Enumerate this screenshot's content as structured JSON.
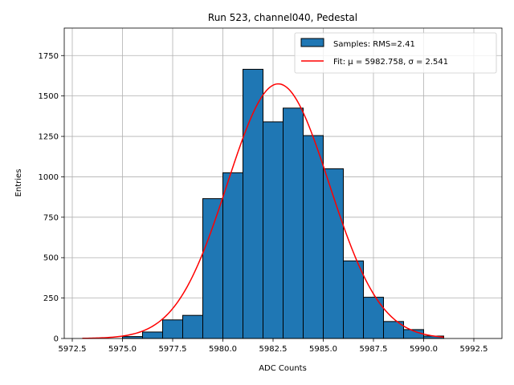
{
  "chart_data": {
    "type": "bar",
    "title": "Run 523, channel040, Pedestal",
    "xlabel": "ADC Counts",
    "ylabel": "Entries",
    "xlim": [
      5972.1,
      5993.9
    ],
    "ylim": [
      0,
      1920
    ],
    "grid": true,
    "legend_position": "top-right",
    "x_ticks": [
      5972.5,
      5975.0,
      5977.5,
      5980.0,
      5982.5,
      5985.0,
      5987.5,
      5990.0,
      5992.5
    ],
    "x_tick_labels": [
      "5972.5",
      "5975.0",
      "5977.5",
      "5980.0",
      "5982.5",
      "5985.0",
      "5987.5",
      "5990.0",
      "5992.5"
    ],
    "y_ticks": [
      0,
      250,
      500,
      750,
      1000,
      1250,
      1500,
      1750
    ],
    "y_tick_labels": [
      "0",
      "250",
      "500",
      "750",
      "1000",
      "1250",
      "1500",
      "1750"
    ],
    "histogram": {
      "name": "Samples: RMS=2.41",
      "color": "#1f77b4",
      "edgecolor": "#000000",
      "bin_edges": [
        5975,
        5976,
        5977,
        5978,
        5979,
        5980,
        5981,
        5982,
        5983,
        5984,
        5985,
        5986,
        5987,
        5988,
        5989,
        5990,
        5991
      ],
      "counts": [
        12,
        40,
        115,
        143,
        865,
        1025,
        1665,
        1340,
        1425,
        1255,
        1050,
        480,
        255,
        105,
        55,
        15
      ]
    },
    "fit": {
      "name": "Fit: μ = 5982.758, σ = 2.541",
      "color": "#ff0000",
      "mu": 5982.758,
      "sigma": 2.541,
      "amplitude": 1575,
      "x_range": [
        5973,
        5991
      ]
    },
    "legend": [
      {
        "label": "Samples: RMS=2.41"
      },
      {
        "label": "Fit: μ = 5982.758, σ = 2.541"
      }
    ]
  }
}
